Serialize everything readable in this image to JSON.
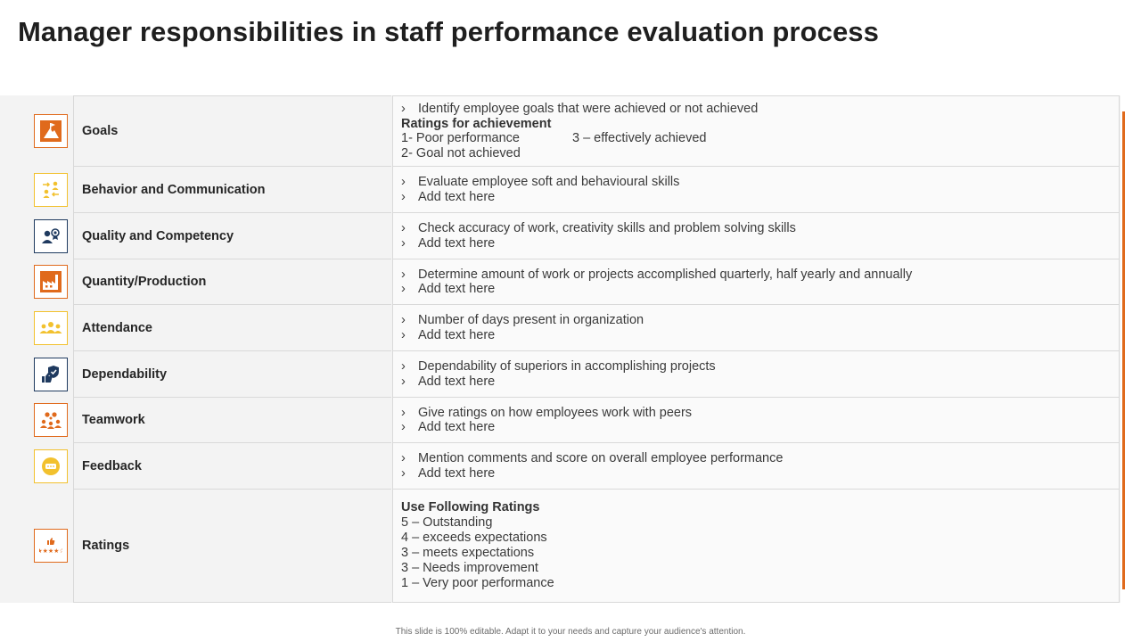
{
  "title": "Manager responsibilities in staff performance evaluation process",
  "colors": {
    "orange": "#E06A1C",
    "yellow": "#F2C12E",
    "navy": "#1F3A5F"
  },
  "rows": [
    {
      "label": "Goals",
      "icon": "flag-mountain-icon",
      "bullets": [
        "Identify employee goals that were achieved or not achieved"
      ],
      "ratings_heading": "Ratings for achievement",
      "ratings_row1_left": "1- Poor performance",
      "ratings_row1_right": "3 – effectively achieved",
      "ratings_row2": "2- Goal not achieved"
    },
    {
      "label": "Behavior and Communication",
      "icon": "people-exchange-icon",
      "bullets": [
        "Evaluate employee soft and behavioural skills",
        "Add text here"
      ]
    },
    {
      "label": "Quality and Competency",
      "icon": "person-award-icon",
      "bullets": [
        "Check accuracy of work, creativity skills and problem solving skills",
        "Add text here"
      ]
    },
    {
      "label": "Quantity/Production",
      "icon": "factory-icon",
      "bullets": [
        "Determine amount of work or projects accomplished quarterly, half yearly and annually",
        "Add text here"
      ]
    },
    {
      "label": "Attendance",
      "icon": "group-icon",
      "bullets": [
        "Number of days present in organization",
        "Add text here"
      ]
    },
    {
      "label": "Dependability",
      "icon": "thumbs-shield-icon",
      "bullets": [
        "Dependability of superiors in accomplishing projects",
        "Add text here"
      ]
    },
    {
      "label": "Teamwork",
      "icon": "team-gears-icon",
      "bullets": [
        "Give ratings on how employees work with peers",
        "Add text here"
      ]
    },
    {
      "label": "Feedback",
      "icon": "chat-bubble-icon",
      "bullets": [
        "Mention comments and score on overall employee performance",
        "Add text here"
      ]
    },
    {
      "label": "Ratings",
      "icon": "thumbs-stars-icon",
      "heading": "Use Following Ratings",
      "lines": [
        "5 – Outstanding",
        "4 – exceeds expectations",
        "3 – meets expectations",
        "3 – Needs improvement",
        "1 – Very poor performance"
      ]
    }
  ],
  "bullet_glyph": "›",
  "footer": "This slide is 100% editable. Adapt it to your needs and capture your audience's attention."
}
